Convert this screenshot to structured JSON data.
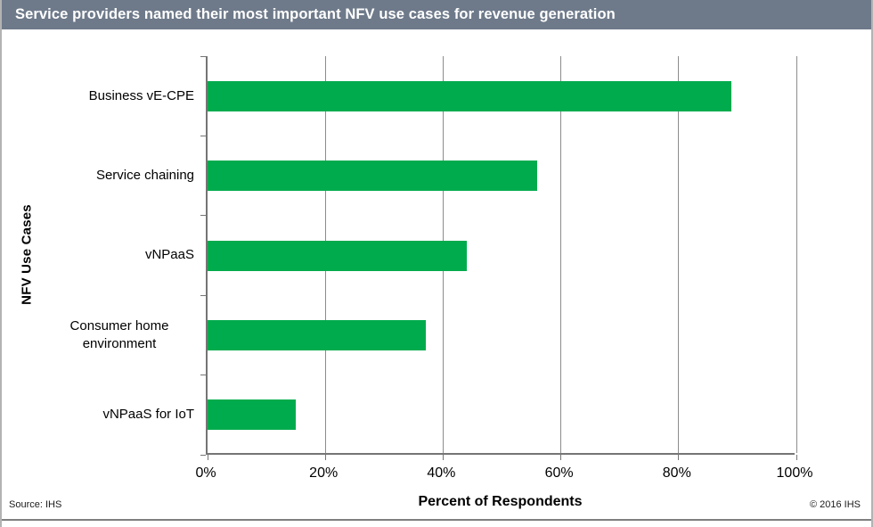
{
  "header": {
    "title": "Service providers named their most important NFV use cases for revenue generation",
    "bg_color": "#6E7A8A",
    "text_color": "#ffffff"
  },
  "chart_data": {
    "type": "bar",
    "orientation": "horizontal",
    "categories": [
      "Business vE-CPE",
      "Service chaining",
      "vNPaaS",
      "Consumer home environment",
      "vNPaaS for IoT"
    ],
    "values": [
      89,
      56,
      44,
      37,
      15
    ],
    "xlabel": "Percent of Respondents",
    "ylabel": "NFV Use Cases",
    "xlim": [
      0,
      100
    ],
    "x_ticks": [
      {
        "value": 0,
        "label": "0%"
      },
      {
        "value": 20,
        "label": "20%"
      },
      {
        "value": 40,
        "label": "40%"
      },
      {
        "value": 60,
        "label": "60%"
      },
      {
        "value": 80,
        "label": "80%"
      },
      {
        "value": 100,
        "label": "100%"
      }
    ],
    "bar_color": "#00AB4D",
    "grid": true,
    "legend": false
  },
  "footer": {
    "source": "Source: IHS",
    "copyright": "© 2016 IHS"
  }
}
